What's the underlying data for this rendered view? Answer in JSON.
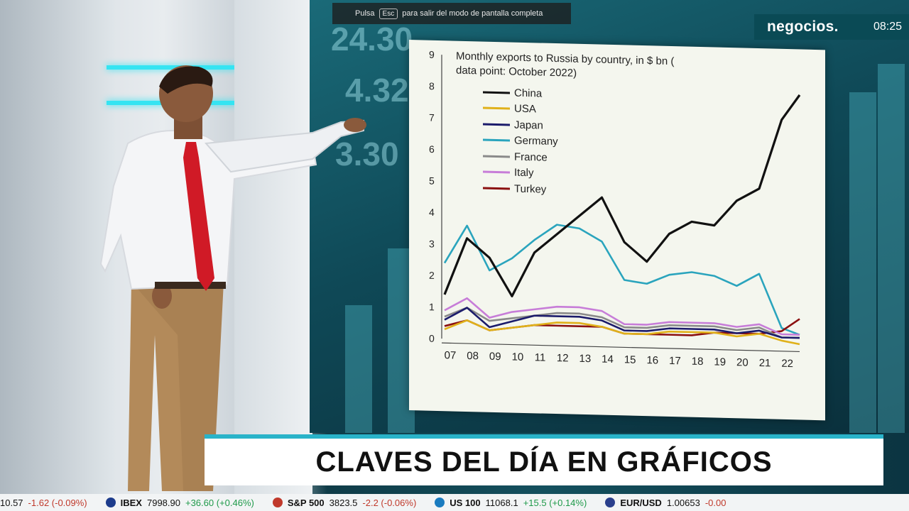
{
  "browser_notice": {
    "prefix": "Pulsa",
    "key": "Esc",
    "suffix": "para salir del modo de pantalla completa"
  },
  "broadcast": {
    "brand": "negocios.",
    "time": "08:25"
  },
  "background_numbers": [
    "24.30",
    "4.32",
    "3.30"
  ],
  "chart_data": {
    "type": "line",
    "title": "Monthly exports to Russia by country, in $ bn (",
    "subtitle": "data point: October 2022)",
    "ylim": [
      0,
      9
    ],
    "yticks": [
      "0",
      "1",
      "2",
      "3",
      "4",
      "5",
      "6",
      "7",
      "8",
      "9"
    ],
    "xticks": [
      "07",
      "08",
      "09",
      "10",
      "11",
      "12",
      "13",
      "14",
      "15",
      "16",
      "17",
      "18",
      "19",
      "20",
      "21",
      "22"
    ],
    "x": [
      2007,
      2008,
      2009,
      2010,
      2011,
      2012,
      2013,
      2014,
      2015,
      2016,
      2017,
      2018,
      2019,
      2020,
      2021,
      2022,
      2022.8
    ],
    "series": [
      {
        "name": "China",
        "color": "#111111",
        "values": [
          1.4,
          3.2,
          2.6,
          1.4,
          2.8,
          3.4,
          4.0,
          4.6,
          3.2,
          2.6,
          3.5,
          3.9,
          3.8,
          4.6,
          5.0,
          7.2,
          8.0
        ]
      },
      {
        "name": "USA",
        "color": "#e0b11a",
        "values": [
          0.3,
          0.6,
          0.3,
          0.4,
          0.5,
          0.6,
          0.6,
          0.5,
          0.3,
          0.3,
          0.4,
          0.4,
          0.4,
          0.3,
          0.4,
          0.2,
          0.1
        ]
      },
      {
        "name": "Japan",
        "color": "#1b1b6b",
        "values": [
          0.6,
          1.0,
          0.4,
          0.6,
          0.8,
          0.8,
          0.8,
          0.7,
          0.4,
          0.4,
          0.5,
          0.5,
          0.5,
          0.4,
          0.5,
          0.3,
          0.3
        ]
      },
      {
        "name": "Germany",
        "color": "#2aa4bd",
        "values": [
          2.4,
          3.6,
          2.2,
          2.6,
          3.2,
          3.7,
          3.6,
          3.2,
          2.0,
          1.9,
          2.2,
          2.3,
          2.2,
          1.9,
          2.3,
          0.6,
          0.4
        ]
      },
      {
        "name": "France",
        "color": "#8a8a8a",
        "values": [
          0.7,
          1.0,
          0.6,
          0.7,
          0.8,
          0.9,
          0.9,
          0.8,
          0.5,
          0.5,
          0.6,
          0.6,
          0.6,
          0.5,
          0.6,
          0.3,
          0.3
        ]
      },
      {
        "name": "Italy",
        "color": "#c77dd8",
        "values": [
          0.9,
          1.3,
          0.7,
          0.9,
          1.0,
          1.1,
          1.1,
          1.0,
          0.6,
          0.6,
          0.7,
          0.7,
          0.7,
          0.6,
          0.7,
          0.4,
          0.4
        ]
      },
      {
        "name": "Turkey",
        "color": "#8b1010",
        "values": [
          0.4,
          0.6,
          0.3,
          0.4,
          0.5,
          0.5,
          0.5,
          0.5,
          0.3,
          0.3,
          0.3,
          0.3,
          0.4,
          0.4,
          0.4,
          0.5,
          0.9
        ]
      }
    ],
    "legend": "upper-left",
    "grid": false
  },
  "lower_third": {
    "title": "CLAVES DEL DÍA EN GRÁFICOS"
  },
  "ticker": [
    {
      "name": "",
      "value": "10.57",
      "change": "-1.62 (-0.09%)",
      "up": false,
      "icon_color": ""
    },
    {
      "name": "IBEX",
      "value": "7998.90",
      "change": "+36.60 (+0.46%)",
      "up": true,
      "icon_color": "#1d3c8c"
    },
    {
      "name": "S&P 500",
      "value": "3823.5",
      "change": "-2.2 (-0.06%)",
      "up": false,
      "icon_color": "#c0392b"
    },
    {
      "name": "US 100",
      "value": "11068.1",
      "change": "+15.5 (+0.14%)",
      "up": true,
      "icon_color": "#1a7bbf"
    },
    {
      "name": "EUR/USD",
      "value": "1.00653",
      "change": "-0.00",
      "up": false,
      "icon_color": "#2a3f8c"
    }
  ]
}
